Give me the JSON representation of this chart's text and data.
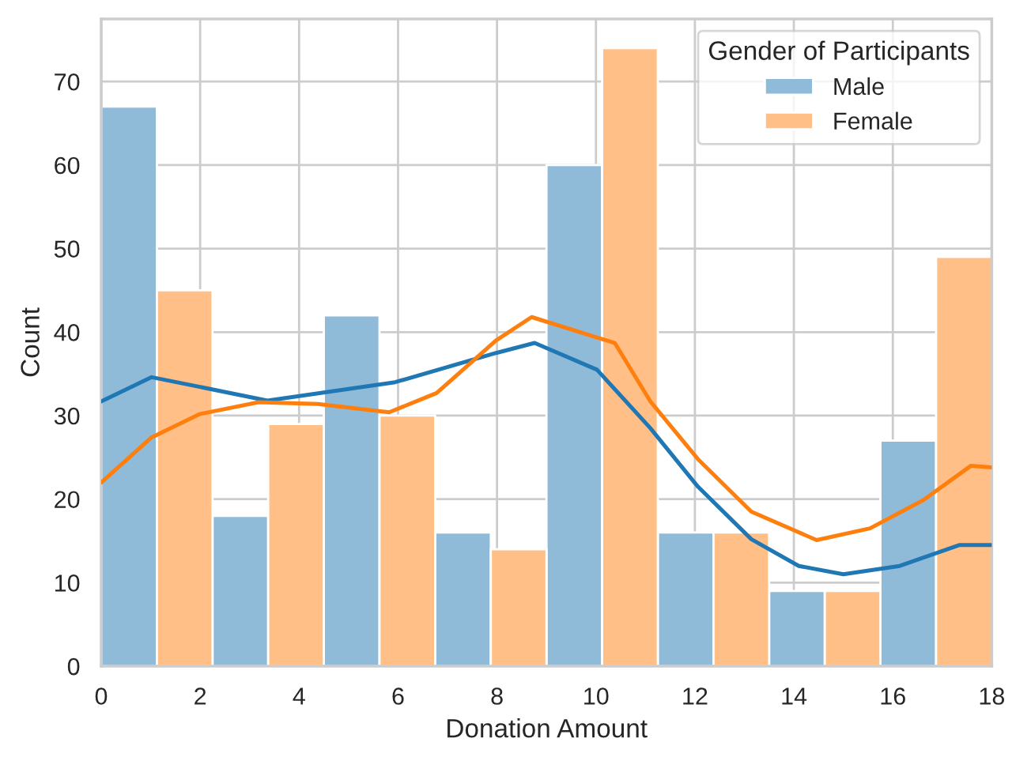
{
  "chart_data": {
    "type": "histogram",
    "xlabel": "Donation Amount",
    "ylabel": "Count",
    "legend_title": "Gender of Participants",
    "bins": [
      0,
      2.25,
      4.5,
      6.75,
      9,
      11.25,
      13.5,
      15.75,
      18
    ],
    "series": [
      {
        "name": "Male",
        "color": "#8fbbd9",
        "values": [
          67,
          18,
          42,
          16,
          60,
          16,
          9,
          27
        ]
      },
      {
        "name": "Female",
        "color": "#ffbf87",
        "values": [
          45,
          29,
          30,
          14,
          74,
          16,
          9,
          49
        ]
      },
      {
        "type": "line",
        "color": "#1f77b4",
        "x": [
          0,
          1.02,
          3.36,
          5.94,
          7.98,
          8.76,
          10.02,
          11.1,
          12.06,
          13.14,
          14.1,
          15.0,
          16.14,
          17.34,
          18
        ],
        "values": [
          31.7,
          34.6,
          31.8,
          34.0,
          37.5,
          38.7,
          35.5,
          28.5,
          21.5,
          15.2,
          12.0,
          11.0,
          12.0,
          14.5,
          14.5
        ]
      },
      {
        "type": "line",
        "color": "#ff7f0e",
        "x": [
          0,
          1.02,
          2.0,
          3.18,
          4.38,
          5.82,
          6.78,
          7.98,
          8.7,
          10.38,
          11.1,
          12.06,
          13.14,
          14.46,
          15.54,
          16.62,
          17.58,
          18
        ],
        "values": [
          22.0,
          27.4,
          30.2,
          31.6,
          31.4,
          30.4,
          32.7,
          39.0,
          41.8,
          38.7,
          31.7,
          24.8,
          18.5,
          15.1,
          16.5,
          19.9,
          24.0,
          23.8
        ]
      }
    ],
    "xlim": [
      0,
      18
    ],
    "xticks": [
      0,
      2,
      4,
      6,
      8,
      10,
      12,
      14,
      16,
      18
    ],
    "ylim": [
      0,
      77.5
    ],
    "yticks": [
      0,
      10,
      20,
      30,
      40,
      50,
      60,
      70
    ],
    "grid": true,
    "legend": "top right"
  }
}
